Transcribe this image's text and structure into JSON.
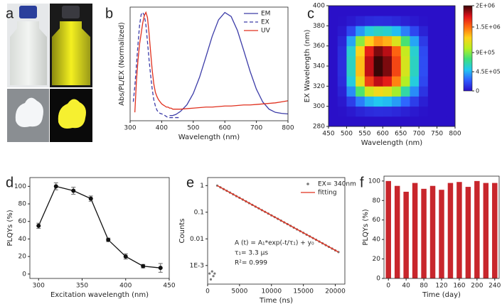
{
  "panel_labels": [
    "a",
    "b",
    "c",
    "d",
    "e",
    "f"
  ],
  "chart_data": [
    {
      "type": "line",
      "xlabel": "Wavelength (nm)",
      "ylabel": "Abs/PL/EX (Normalized)",
      "x": [
        310,
        315,
        320,
        325,
        330,
        335,
        340,
        345,
        350,
        355,
        360,
        365,
        370,
        375,
        380,
        385,
        390,
        395,
        400,
        405,
        410,
        415,
        420,
        425,
        430,
        435,
        440,
        445,
        450,
        455,
        460,
        480,
        500,
        520,
        540,
        560,
        580,
        600,
        620,
        640,
        660,
        680,
        700,
        720,
        740,
        760,
        780,
        800
      ],
      "xlim": [
        300,
        800
      ],
      "xticks": [
        300,
        400,
        500,
        600,
        700,
        800
      ],
      "ylim": [
        -0.03,
        1.05
      ],
      "legend": "upper right",
      "series": [
        {
          "name": "EM",
          "color": "#3c3ca8",
          "values": [
            null,
            null,
            null,
            null,
            null,
            null,
            null,
            null,
            null,
            null,
            null,
            null,
            null,
            null,
            null,
            null,
            null,
            null,
            null,
            null,
            null,
            null,
            null,
            0.02,
            0.02,
            0.02,
            0.025,
            0.03,
            0.04,
            0.05,
            0.06,
            0.122,
            0.229,
            0.384,
            0.576,
            0.773,
            0.929,
            0.999,
            0.961,
            0.827,
            0.636,
            0.44,
            0.27,
            0.149,
            0.08,
            0.05,
            0.04,
            0.035
          ]
        },
        {
          "name": "EX",
          "color": "#3c3ca8",
          "dash": true,
          "values": [
            0.15,
            0.3,
            0.5,
            0.7,
            0.88,
            0.98,
            1.0,
            0.97,
            0.88,
            0.72,
            0.55,
            0.4,
            0.27,
            0.17,
            0.11,
            0.07,
            0.05,
            0.04,
            0.035,
            0.03,
            0.02,
            0.01,
            0,
            0,
            0,
            0,
            0,
            0,
            0,
            0,
            0,
            null,
            null,
            null,
            null,
            null,
            null,
            null,
            null,
            null,
            null,
            null,
            null,
            null,
            null,
            null,
            null,
            null
          ]
        },
        {
          "name": "UV",
          "color": "#e0301e",
          "values": [
            null,
            0.05,
            0.35,
            0.55,
            0.7,
            0.8,
            0.9,
            0.97,
            1.0,
            0.95,
            0.8,
            0.62,
            0.45,
            0.32,
            0.24,
            0.2,
            0.17,
            0.15,
            0.13,
            0.12,
            0.11,
            0.1,
            0.1,
            0.09,
            0.09,
            0.08,
            0.08,
            0.08,
            0.08,
            0.08,
            0.08,
            0.085,
            0.09,
            0.095,
            0.1,
            0.1,
            0.105,
            0.11,
            0.11,
            0.115,
            0.12,
            0.12,
            0.125,
            0.13,
            0.135,
            0.14,
            0.15,
            0.16
          ]
        }
      ]
    },
    {
      "type": "heatmap",
      "xlabel": "Wavelength (nm)",
      "ylabel": "EX Wavelength (nm)",
      "x": [
        462.5,
        487.5,
        512.5,
        537.5,
        562.5,
        587.5,
        612.5,
        637.5,
        662.5,
        687.5,
        712.5,
        737.5,
        762.5,
        787.5
      ],
      "y": [
        285,
        295,
        305,
        315,
        325,
        335,
        345,
        355,
        365,
        375,
        385,
        395
      ],
      "z": [
        [
          0,
          0,
          0,
          0,
          0,
          0,
          0,
          0,
          0,
          0,
          0,
          0,
          0,
          0
        ],
        [
          0,
          5000,
          30000,
          65000,
          90000,
          100000,
          95000,
          80000,
          55000,
          30000,
          10000,
          0,
          0,
          0
        ],
        [
          0,
          25000,
          150000,
          325000,
          450000,
          500000,
          475000,
          400000,
          275000,
          150000,
          50000,
          0,
          0,
          0
        ],
        [
          0,
          60000,
          360000,
          780000,
          1080000,
          1200000,
          1140000,
          960000,
          660000,
          360000,
          120000,
          0,
          0,
          0
        ],
        [
          0,
          90000,
          540000,
          1170000,
          1620000,
          1800000,
          1710000,
          1440000,
          990000,
          540000,
          180000,
          0,
          0,
          0
        ],
        [
          0,
          100000,
          600000,
          1300000,
          1800000,
          2000000,
          1900000,
          1600000,
          1100000,
          600000,
          200000,
          0,
          0,
          0
        ],
        [
          0,
          100000,
          600000,
          1300000,
          1800000,
          2000000,
          1900000,
          1600000,
          1100000,
          600000,
          200000,
          0,
          0,
          0
        ],
        [
          0,
          95000,
          570000,
          1240000,
          1710000,
          1900000,
          1810000,
          1520000,
          1050000,
          570000,
          190000,
          0,
          0,
          0
        ],
        [
          0,
          70000,
          420000,
          910000,
          1260000,
          1400000,
          1330000,
          1120000,
          770000,
          420000,
          140000,
          0,
          0,
          0
        ],
        [
          0,
          30000,
          180000,
          390000,
          540000,
          600000,
          570000,
          480000,
          330000,
          180000,
          60000,
          0,
          0,
          0
        ],
        [
          0,
          5000,
          30000,
          65000,
          90000,
          100000,
          95000,
          80000,
          55000,
          30000,
          10000,
          0,
          0,
          0
        ],
        [
          0,
          0,
          0,
          0,
          0,
          0,
          0,
          0,
          0,
          0,
          0,
          0,
          0,
          0
        ]
      ],
      "xlim": [
        450,
        800
      ],
      "xticks": [
        450,
        500,
        550,
        600,
        650,
        700,
        750,
        800
      ],
      "ylim": [
        280,
        400
      ],
      "yticks": [
        280,
        300,
        320,
        340,
        360,
        380,
        400
      ],
      "zlim": [
        0,
        2000000
      ],
      "zticks": [
        0,
        {
          "value": 450000,
          "label": "4.5E+05"
        },
        {
          "value": 900000,
          "label": "9E+05"
        },
        {
          "value": 1500000,
          "label": "1.5E+06"
        },
        {
          "value": 2000000,
          "label": "2E+06"
        }
      ],
      "colormap": [
        "#2a10c8",
        "#2f5cff",
        "#22c8f0",
        "#3ee07a",
        "#b8f020",
        "#ffd21a",
        "#ff6a10",
        "#e0101a",
        "#3a0606"
      ]
    },
    {
      "type": "errorline",
      "xlabel": "Excitation wavelength (nm)",
      "ylabel": "PLQYs (%)",
      "x": [
        300,
        320,
        340,
        360,
        380,
        400,
        420,
        440
      ],
      "values": [
        55,
        100,
        95,
        86,
        39,
        20,
        9,
        7
      ],
      "errors": [
        3,
        4,
        4,
        3,
        2,
        3,
        2,
        5
      ],
      "color": "#111111",
      "xlim": [
        290,
        450
      ],
      "xticks": [
        300,
        350,
        400,
        450
      ],
      "ylim": [
        -5,
        110
      ],
      "yticks": [
        0,
        20,
        40,
        60,
        80,
        100
      ]
    },
    {
      "type": "scatter",
      "xlabel": "Time (ns)",
      "ylabel": "Counts",
      "log_y": true,
      "xlim": [
        0,
        21500
      ],
      "xticks": [
        0,
        5000,
        10000,
        15000,
        20000
      ],
      "ylim": [
        0.0002,
        2
      ],
      "yticks": [
        {
          "value": 0.001,
          "label": "1E-3"
        },
        0.01,
        0.1,
        1
      ],
      "legend": "upper right",
      "annotations": [
        "A (t) = A₁*exp(-t/τ₁) + y₀",
        "τ₁= 3.3 µs",
        "R²= 0.999"
      ],
      "series": [
        {
          "name": "EX= 340nm",
          "color": "#7a7a7a",
          "mode": "points",
          "x": [
            300,
            500,
            700,
            900,
            1100,
            1500,
            2000,
            2500,
            3000,
            3500,
            4000,
            4500,
            5000,
            5500,
            6000,
            6500,
            7000,
            7500,
            8000,
            8500,
            9000,
            9500,
            10000,
            10500,
            11000,
            11500,
            12000,
            12500,
            13000,
            13500,
            14000,
            14500,
            15000,
            15500,
            16000,
            16500,
            17000,
            17500,
            18000,
            18500,
            19000,
            19500,
            20000,
            20500
          ],
          "values": [
            0.0005,
            0.0003,
            0.0006,
            0.0004,
            0.0005,
            1,
            0.86,
            0.738,
            0.635,
            0.546,
            0.469,
            0.403,
            0.347,
            0.298,
            0.256,
            0.22,
            0.189,
            0.162,
            0.14,
            0.12,
            0.103,
            0.0886,
            0.0762,
            0.0655,
            0.0563,
            0.0484,
            0.0416,
            0.0358,
            0.0307,
            0.0264,
            0.0227,
            0.0195,
            0.0168,
            0.0144,
            0.0124,
            0.0107,
            0.0092,
            0.0079,
            0.0068,
            0.0058,
            0.005,
            0.0043,
            0.0037,
            0.0032
          ]
        },
        {
          "name": "fitting",
          "color": "#e0301e",
          "mode": "line",
          "x": [
            1500,
            20500
          ],
          "values": [
            1,
            0.0032
          ]
        }
      ]
    },
    {
      "type": "bar",
      "xlabel": "Time (day)",
      "ylabel": "PLQYs (%)",
      "x": [
        0,
        20,
        40,
        60,
        80,
        100,
        120,
        140,
        160,
        180,
        200,
        220,
        240
      ],
      "values": [
        100,
        95,
        89,
        98,
        92,
        95,
        91,
        98,
        99,
        94,
        100,
        98,
        98
      ],
      "color": "#c8262c",
      "xlim": [
        -10,
        250
      ],
      "xticks": [
        0,
        40,
        80,
        120,
        160,
        200,
        240
      ],
      "ylim": [
        0,
        105
      ],
      "yticks": [
        0,
        20,
        40,
        60,
        80,
        100
      ]
    }
  ]
}
